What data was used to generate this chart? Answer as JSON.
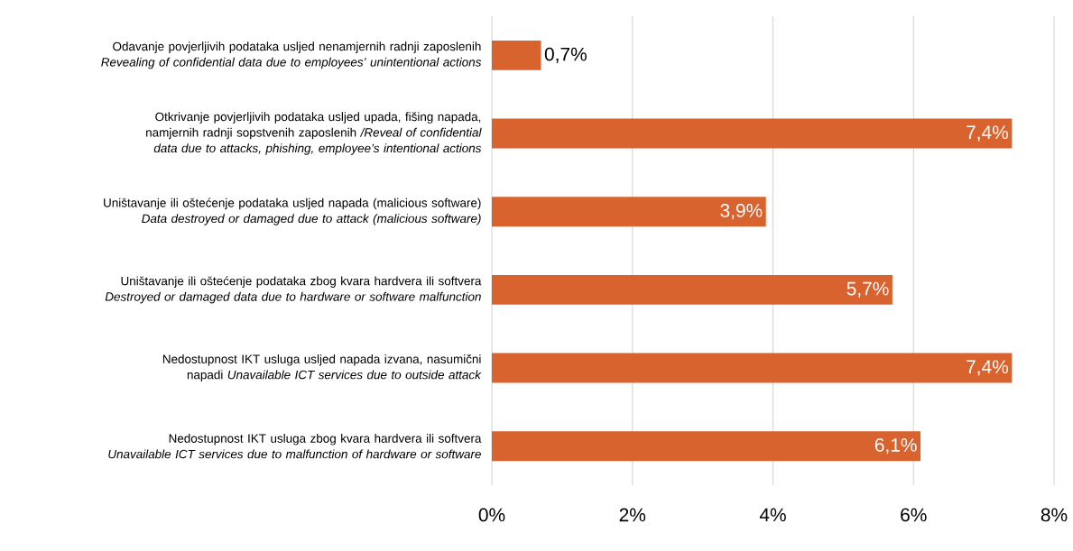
{
  "chart_data": {
    "type": "bar",
    "orientation": "horizontal",
    "categories": [
      "Odavanje povjerljivih podataka usljed nenamjernih radnji zaposlenih *Revealing of confidential data due to employees’ unintentional actions*",
      "Otkrivanje povjerljivih podataka usljed upada, fišing napada, namjernih radnji sopstvenih zaposlenih */Reveal of confidential data due to attacks, phishing, employee’s intentional actions*",
      "Uništavanje ili oštećenje podataka usljed napada (malicious software) *Data destroyed or damaged due to attack (malicious software)*",
      "Uništavanje ili oštećenje podataka zbog kvara hardvera ili softvera *Destroyed or damaged data due to hardware or software malfunction*",
      "Nedostupnost IKT usluga usljed napada izvana, nasumični napadi *Unavailable ICT services due to outside attack*",
      "Nedostupnost IKT usluga zbog kvara hardvera ili softvera *Unavailable ICT services due to malfunction of hardware or software*"
    ],
    "values": [
      0.7,
      7.4,
      3.9,
      5.7,
      7.4,
      6.1
    ],
    "value_labels": [
      "0,7%",
      "7,4%",
      "3,9%",
      "5,7%",
      "7,4%",
      "6,1%"
    ],
    "color": "#d9632e",
    "xlim": [
      0,
      8
    ],
    "xticks": [
      {
        "value": 0,
        "label": "0%"
      },
      {
        "value": 2,
        "label": "2%"
      },
      {
        "value": 4,
        "label": "4%"
      },
      {
        "value": 6,
        "label": "6%"
      },
      {
        "value": 8,
        "label": "8%"
      }
    ],
    "grid": "x"
  }
}
